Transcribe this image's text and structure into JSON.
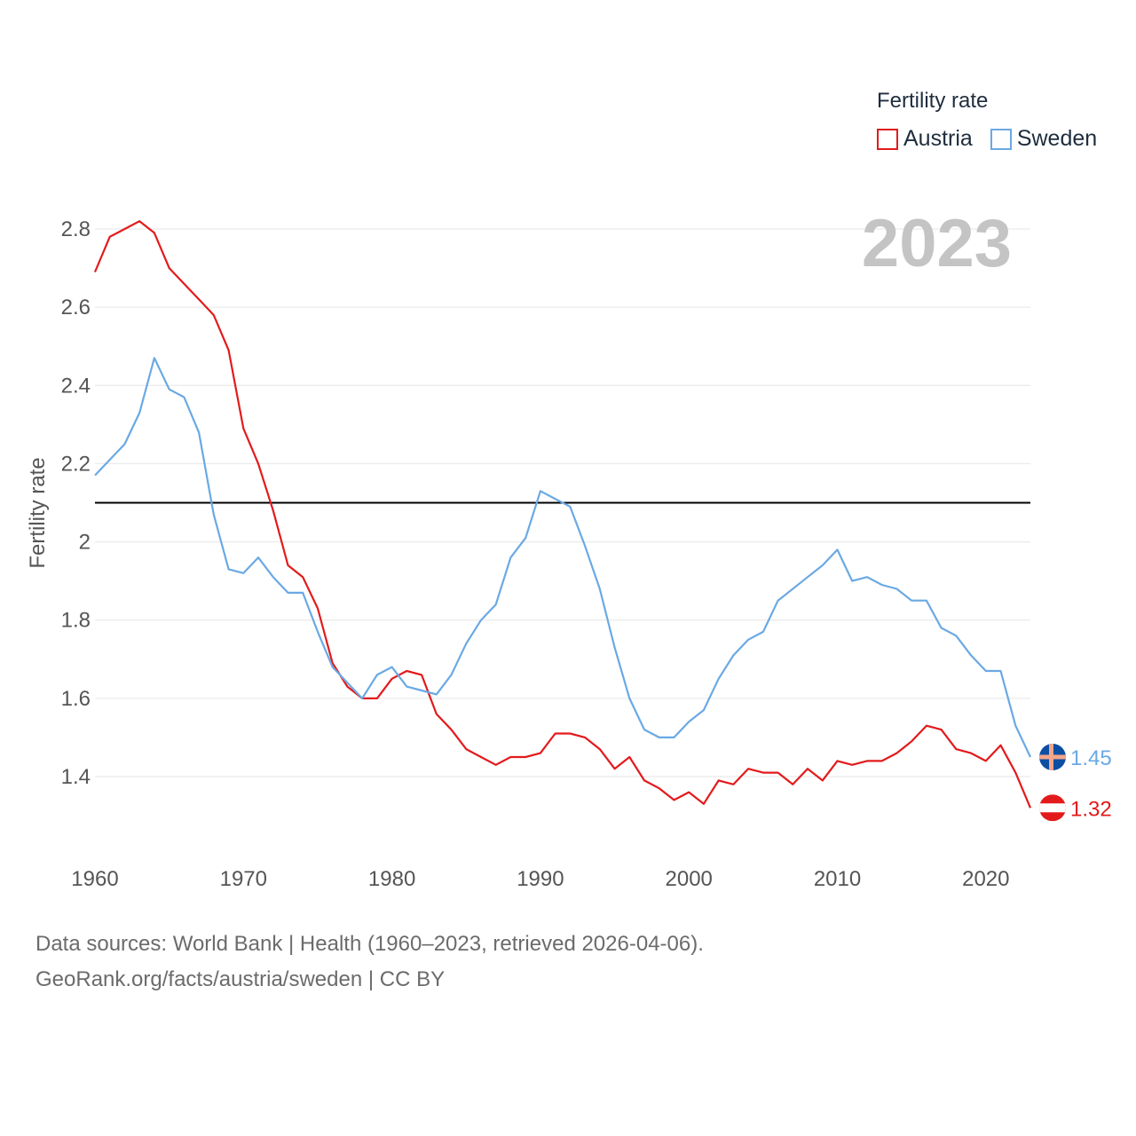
{
  "colors": {
    "austria": "#e31a1c",
    "sweden": "#6aa9e4",
    "reference": "#000000",
    "grid": "#e6e6e6",
    "axis_text": "#555555",
    "year_text": "#c4c4c4"
  },
  "legend": {
    "title": "Fertility rate",
    "items": [
      {
        "name": "Austria",
        "color": "#e31a1c"
      },
      {
        "name": "Sweden",
        "color": "#6aa9e4"
      }
    ]
  },
  "sources": {
    "line1": "Data sources: World Bank | Health (1960–2023, retrieved 2026-04-06).",
    "line2": "GeoRank.org/facts/austria/sweden | CC BY"
  },
  "chart_data": {
    "type": "line",
    "title": "",
    "year_label": "2023",
    "ylabel": "Fertility rate",
    "xlabel": "",
    "xlim": [
      1960,
      2023
    ],
    "ylim": [
      1.25,
      2.88
    ],
    "x_ticks": [
      1960,
      1970,
      1980,
      1990,
      2000,
      2010,
      2020
    ],
    "y_ticks": [
      1.4,
      1.6,
      1.8,
      2,
      2.2,
      2.4,
      2.6,
      2.8
    ],
    "y_tick_labels": [
      "1.4",
      "1.6",
      "1.8",
      "2",
      "2.2",
      "2.4",
      "2.6",
      "2.8"
    ],
    "reference_line": 2.1,
    "grid": true,
    "legend_position": "top-right",
    "x": [
      1960,
      1961,
      1962,
      1963,
      1964,
      1965,
      1966,
      1967,
      1968,
      1969,
      1970,
      1971,
      1972,
      1973,
      1974,
      1975,
      1976,
      1977,
      1978,
      1979,
      1980,
      1981,
      1982,
      1983,
      1984,
      1985,
      1986,
      1987,
      1988,
      1989,
      1990,
      1991,
      1992,
      1993,
      1994,
      1995,
      1996,
      1997,
      1998,
      1999,
      2000,
      2001,
      2002,
      2003,
      2004,
      2005,
      2006,
      2007,
      2008,
      2009,
      2010,
      2011,
      2012,
      2013,
      2014,
      2015,
      2016,
      2017,
      2018,
      2019,
      2020,
      2021,
      2022,
      2023
    ],
    "series": [
      {
        "name": "Austria",
        "end_label": "1.32",
        "values": [
          2.69,
          2.78,
          2.8,
          2.82,
          2.79,
          2.7,
          2.66,
          2.62,
          2.58,
          2.49,
          2.29,
          2.2,
          2.08,
          1.94,
          1.91,
          1.83,
          1.69,
          1.63,
          1.6,
          1.6,
          1.65,
          1.67,
          1.66,
          1.56,
          1.52,
          1.47,
          1.45,
          1.43,
          1.45,
          1.45,
          1.46,
          1.51,
          1.51,
          1.5,
          1.47,
          1.42,
          1.45,
          1.39,
          1.37,
          1.34,
          1.36,
          1.33,
          1.39,
          1.38,
          1.42,
          1.41,
          1.41,
          1.38,
          1.42,
          1.39,
          1.44,
          1.43,
          1.44,
          1.44,
          1.46,
          1.49,
          1.53,
          1.52,
          1.47,
          1.46,
          1.44,
          1.48,
          1.41,
          1.32
        ]
      },
      {
        "name": "Sweden",
        "end_label": "1.45",
        "values": [
          2.17,
          2.21,
          2.25,
          2.33,
          2.47,
          2.39,
          2.37,
          2.28,
          2.07,
          1.93,
          1.92,
          1.96,
          1.91,
          1.87,
          1.87,
          1.77,
          1.68,
          1.64,
          1.6,
          1.66,
          1.68,
          1.63,
          1.62,
          1.61,
          1.66,
          1.74,
          1.8,
          1.84,
          1.96,
          2.01,
          2.13,
          2.11,
          2.09,
          1.99,
          1.88,
          1.73,
          1.6,
          1.52,
          1.5,
          1.5,
          1.54,
          1.57,
          1.65,
          1.71,
          1.75,
          1.77,
          1.85,
          1.88,
          1.91,
          1.94,
          1.98,
          1.9,
          1.91,
          1.89,
          1.88,
          1.85,
          1.85,
          1.78,
          1.76,
          1.71,
          1.67,
          1.67,
          1.53,
          1.45
        ]
      }
    ]
  }
}
